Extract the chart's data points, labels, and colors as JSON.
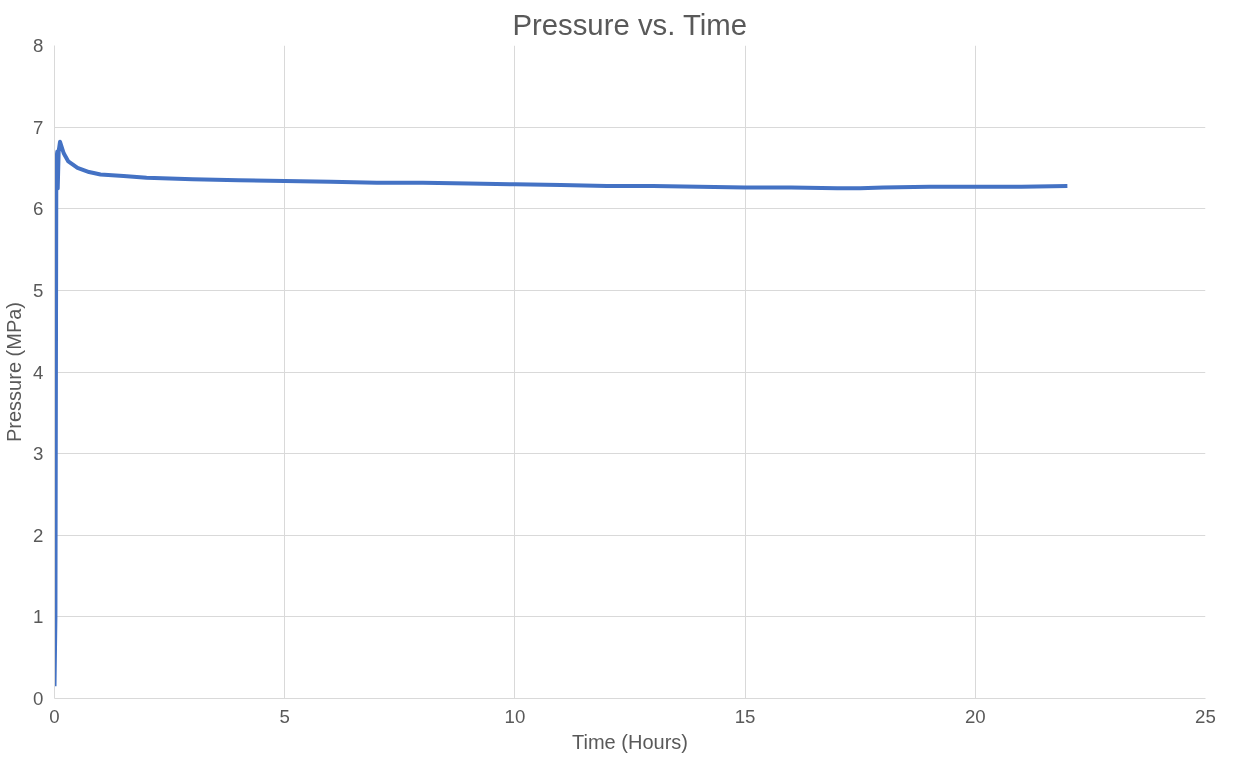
{
  "chart_data": {
    "type": "line",
    "title": "Pressure vs. Time",
    "xlabel": "Time (Hours)",
    "ylabel": "Pressure (MPa)",
    "xlim": [
      0,
      25
    ],
    "xticks": [
      0,
      5,
      10,
      15,
      20,
      25
    ],
    "ylim": [
      0,
      8
    ],
    "yticks": [
      0,
      1,
      2,
      3,
      4,
      5,
      6,
      7,
      8
    ],
    "grid": true,
    "marker": "none",
    "line_style": "solid",
    "series": [
      {
        "color": "#4472c4",
        "x": [
          0,
          0.02,
          0.04,
          0.06,
          0.07,
          0.09,
          0.12,
          0.2,
          0.3,
          0.5,
          0.75,
          1,
          1.5,
          2,
          3,
          4,
          5,
          6,
          7,
          8,
          9,
          10,
          11,
          12,
          13,
          14,
          15,
          16,
          17,
          17.5,
          18,
          19,
          20,
          21,
          22
        ],
        "values": [
          0.15,
          1.0,
          6.6,
          6.7,
          6.25,
          6.7,
          6.82,
          6.68,
          6.58,
          6.5,
          6.45,
          6.42,
          6.4,
          6.38,
          6.36,
          6.35,
          6.34,
          6.33,
          6.32,
          6.32,
          6.31,
          6.3,
          6.29,
          6.28,
          6.28,
          6.27,
          6.26,
          6.26,
          6.25,
          6.25,
          6.26,
          6.27,
          6.27,
          6.27,
          6.28
        ]
      }
    ]
  }
}
